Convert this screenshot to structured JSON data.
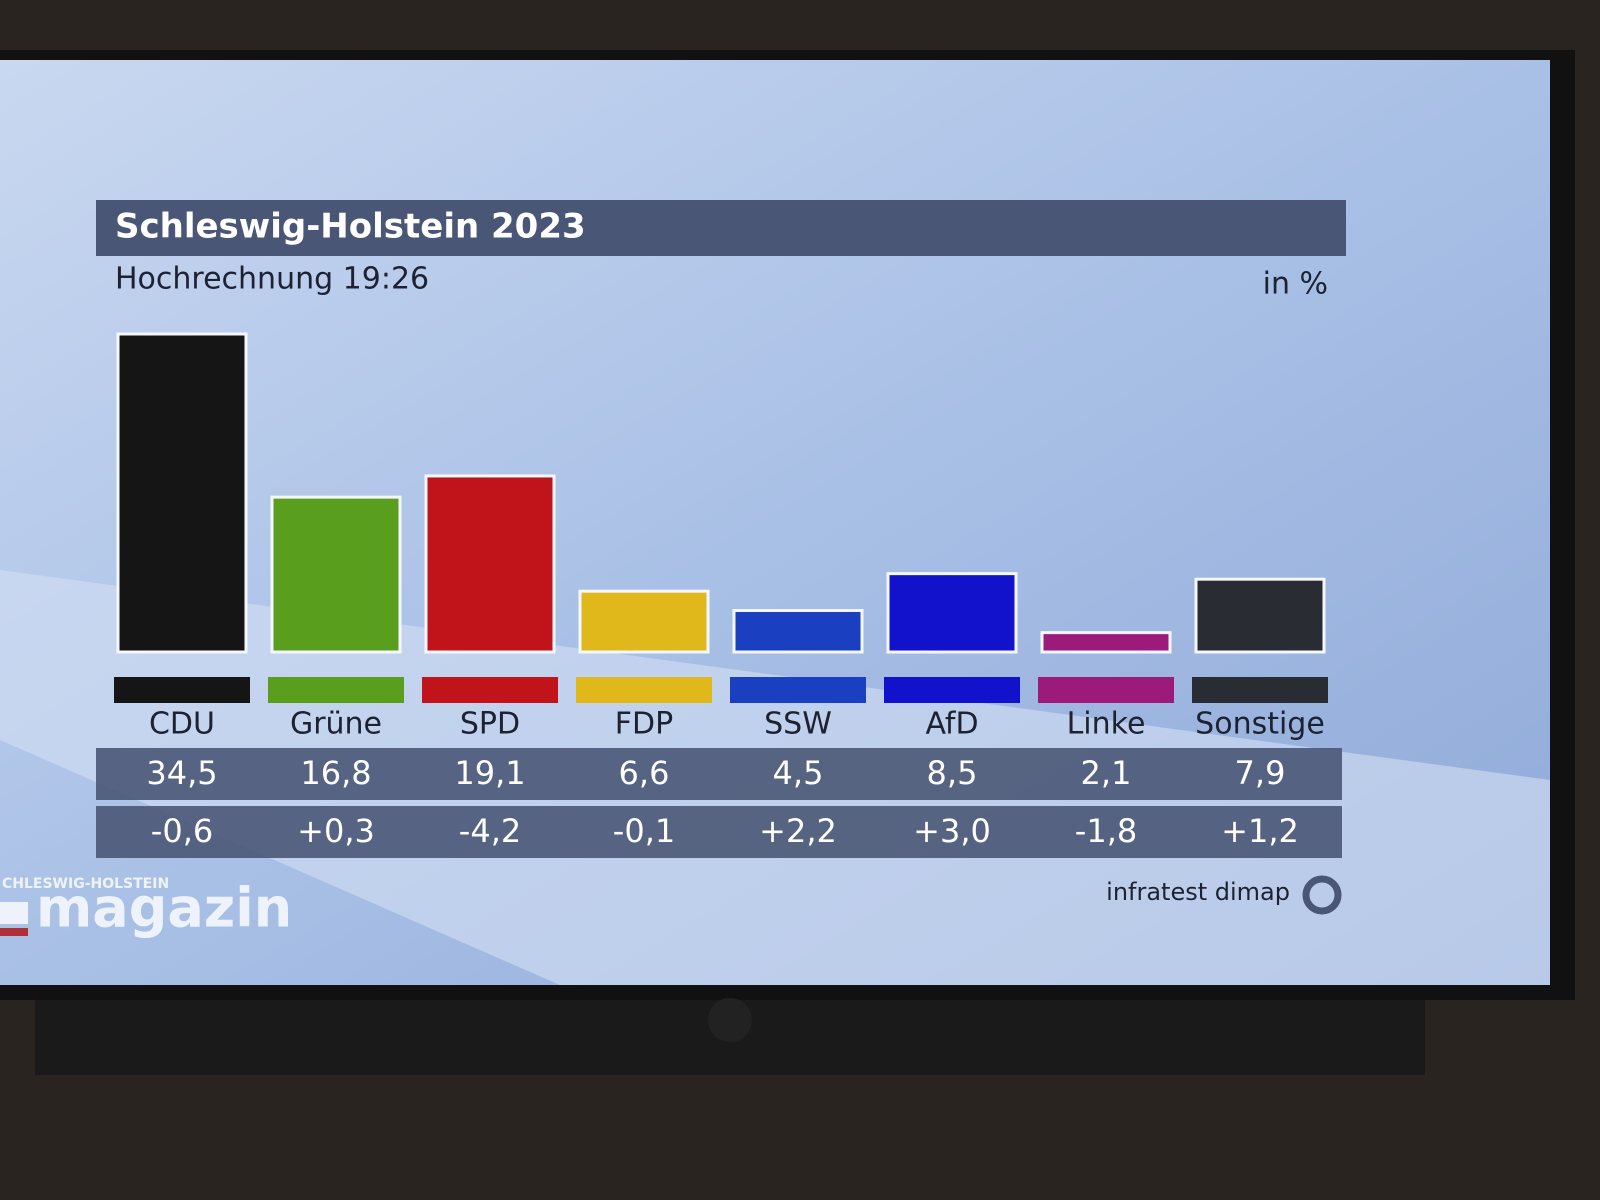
{
  "chart_data": {
    "type": "bar",
    "title": "Schleswig-Holstein 2023",
    "subtitle": "Hochrechnung 19:26",
    "unit_label": "in %",
    "categories": [
      "CDU",
      "Grüne",
      "SPD",
      "FDP",
      "SSW",
      "AfD",
      "Linke",
      "Sonstige"
    ],
    "values": [
      34.5,
      16.8,
      19.1,
      6.6,
      4.5,
      8.5,
      2.1,
      7.9
    ],
    "value_labels": [
      "34,5",
      "16,8",
      "19,1",
      "6,6",
      "4,5",
      "8,5",
      "2,1",
      "7,9"
    ],
    "changes": [
      -0.6,
      0.3,
      -4.2,
      -0.1,
      2.2,
      3.0,
      -1.8,
      1.2
    ],
    "change_labels": [
      "-0,6",
      "+0,3",
      "-4,2",
      "-0,1",
      "+2,2",
      "+3,0",
      "-1,8",
      "+1,2"
    ],
    "colors": [
      "#151515",
      "#5a9e1e",
      "#c0141a",
      "#e0b81c",
      "#1a3fc0",
      "#1212cc",
      "#9c1a7a",
      "#2a2c34"
    ],
    "source": "infratest dimap"
  },
  "branding": {
    "program_top": "CHLESWIG-HOLSTEIN",
    "program": "magazin"
  }
}
